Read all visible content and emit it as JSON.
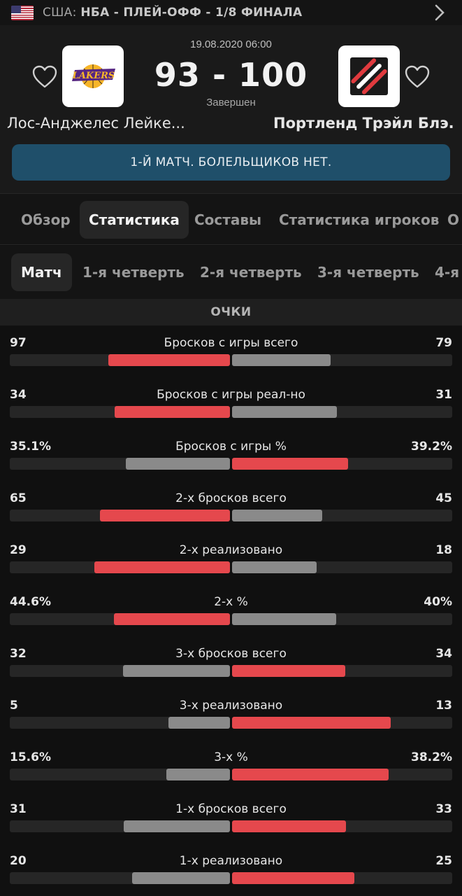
{
  "breadcrumb": {
    "country": "США:",
    "competition": "НБА - ПЛЕЙ-ОФФ - 1/8 ФИНАЛА"
  },
  "match": {
    "datetime": "19.08.2020 06:00",
    "score": "93 - 100",
    "status": "Завершен",
    "home": {
      "name": "Лос-Анджелес Лейке...",
      "logo": "lakers-logo"
    },
    "away": {
      "name": "Портленд Трэйл Блэ...",
      "logo": "trail-blazers-logo"
    },
    "banner": "1-Й МАТЧ. БОЛЕЛЬЩИКОВ НЕТ."
  },
  "tabs": [
    "Обзор",
    "Статистика",
    "Составы",
    "Статистика игроков",
    "О"
  ],
  "active_tab": "Статистика",
  "subtabs": [
    "Матч",
    "1-я четверть",
    "2-я четверть",
    "3-я четверть",
    "4-я"
  ],
  "active_subtab": "Матч",
  "section": "ОЧКИ",
  "colors": {
    "winner": "#e5484d",
    "loser": "#8a8a8a",
    "track": "#262626",
    "banner": "#1f4f6a"
  },
  "stats": [
    {
      "label": "Бросков с игры всего",
      "home": "97",
      "away": "79",
      "home_share": 0.551,
      "away_share": 0.449,
      "leader": "home"
    },
    {
      "label": "Бросков с игры реал-но",
      "home": "34",
      "away": "31",
      "home_share": 0.523,
      "away_share": 0.477,
      "leader": "home"
    },
    {
      "label": "Бросков с игры %",
      "home": "35.1%",
      "away": "39.2%",
      "home_share": 0.472,
      "away_share": 0.528,
      "leader": "away"
    },
    {
      "label": "2-х бросков всего",
      "home": "65",
      "away": "45",
      "home_share": 0.591,
      "away_share": 0.409,
      "leader": "home"
    },
    {
      "label": "2-х реализовано",
      "home": "29",
      "away": "18",
      "home_share": 0.617,
      "away_share": 0.383,
      "leader": "home"
    },
    {
      "label": "2-х %",
      "home": "44.6%",
      "away": "40%",
      "home_share": 0.527,
      "away_share": 0.473,
      "leader": "home"
    },
    {
      "label": "3-х бросков всего",
      "home": "32",
      "away": "34",
      "home_share": 0.485,
      "away_share": 0.515,
      "leader": "away"
    },
    {
      "label": "3-х реализовано",
      "home": "5",
      "away": "13",
      "home_share": 0.278,
      "away_share": 0.722,
      "leader": "away"
    },
    {
      "label": "3-х %",
      "home": "15.6%",
      "away": "38.2%",
      "home_share": 0.29,
      "away_share": 0.71,
      "leader": "away"
    },
    {
      "label": "1-х бросков всего",
      "home": "31",
      "away": "33",
      "home_share": 0.484,
      "away_share": 0.516,
      "leader": "away"
    },
    {
      "label": "1-х реализовано",
      "home": "20",
      "away": "25",
      "home_share": 0.444,
      "away_share": 0.556,
      "leader": "away"
    }
  ]
}
